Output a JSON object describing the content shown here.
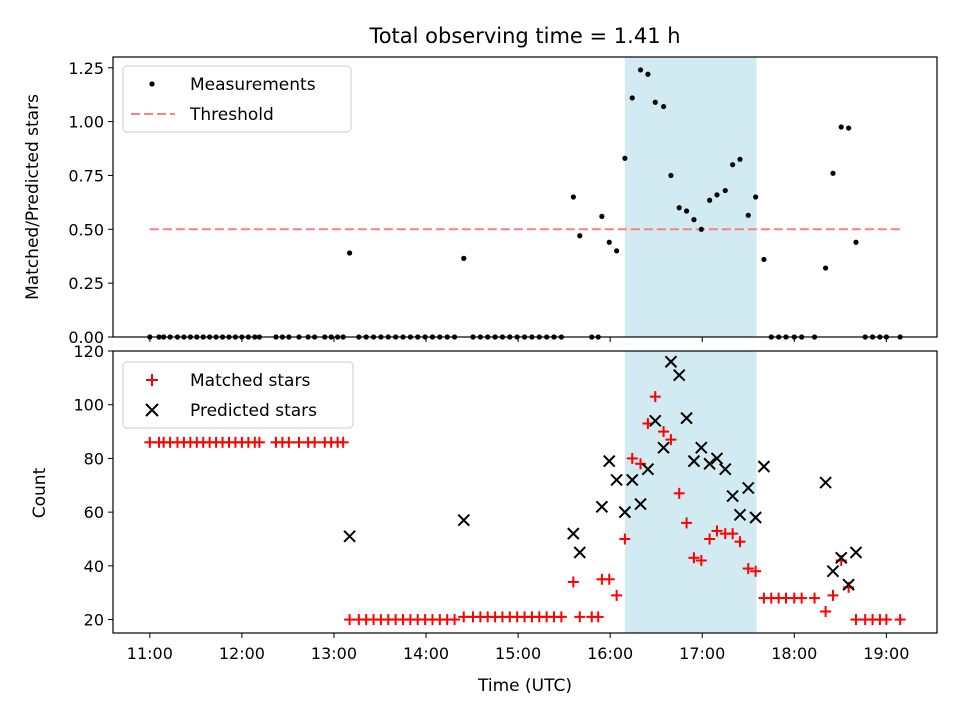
{
  "chart_data": [
    {
      "type": "scatter",
      "title": "Total observing time = 1.41 h",
      "ylabel": "Matched/Predicted stars",
      "xlim": [
        10.6,
        19.55
      ],
      "ylim": [
        0,
        1.3
      ],
      "yticks": [
        0,
        0.25,
        0.5,
        0.75,
        1.0,
        1.25
      ],
      "ytick_labels": [
        "0.00",
        "0.25",
        "0.50",
        "0.75",
        "1.00",
        "1.25"
      ],
      "shaded_interval": {
        "x_start": 16.16,
        "x_end": 17.59,
        "color": "#add8e6"
      },
      "threshold": {
        "name": "Threshold",
        "value": 0.5,
        "x_start": 11.0,
        "x_end": 19.15,
        "color": "#ff7f7f",
        "style": "dashed"
      },
      "legend": {
        "placement": "upper left",
        "entries": [
          "Measurements",
          "Threshold"
        ]
      },
      "series": [
        {
          "name": "Measurements",
          "marker": "dot",
          "color": "#000000",
          "points": [
            [
              11.0,
              0
            ],
            [
              11.1,
              0
            ],
            [
              11.15,
              0
            ],
            [
              11.22,
              0
            ],
            [
              11.3,
              0
            ],
            [
              11.37,
              0
            ],
            [
              11.44,
              0
            ],
            [
              11.51,
              0
            ],
            [
              11.58,
              0
            ],
            [
              11.65,
              0
            ],
            [
              11.72,
              0
            ],
            [
              11.79,
              0
            ],
            [
              11.86,
              0
            ],
            [
              11.93,
              0
            ],
            [
              12.0,
              0
            ],
            [
              12.07,
              0
            ],
            [
              12.14,
              0
            ],
            [
              12.19,
              0
            ],
            [
              12.37,
              0
            ],
            [
              12.44,
              0
            ],
            [
              12.51,
              0
            ],
            [
              12.62,
              0
            ],
            [
              12.72,
              0
            ],
            [
              12.79,
              0
            ],
            [
              12.9,
              0
            ],
            [
              12.97,
              0
            ],
            [
              13.04,
              0
            ],
            [
              13.1,
              0
            ],
            [
              13.17,
              0.39
            ],
            [
              13.27,
              0
            ],
            [
              13.35,
              0
            ],
            [
              13.43,
              0
            ],
            [
              13.51,
              0
            ],
            [
              13.59,
              0
            ],
            [
              13.67,
              0
            ],
            [
              13.75,
              0
            ],
            [
              13.83,
              0
            ],
            [
              13.91,
              0
            ],
            [
              13.99,
              0
            ],
            [
              14.07,
              0
            ],
            [
              14.15,
              0
            ],
            [
              14.23,
              0
            ],
            [
              14.31,
              0
            ],
            [
              14.41,
              0.365
            ],
            [
              14.51,
              0
            ],
            [
              14.59,
              0
            ],
            [
              14.67,
              0
            ],
            [
              14.75,
              0
            ],
            [
              14.83,
              0
            ],
            [
              14.91,
              0
            ],
            [
              14.99,
              0
            ],
            [
              15.07,
              0
            ],
            [
              15.15,
              0
            ],
            [
              15.23,
              0
            ],
            [
              15.31,
              0
            ],
            [
              15.39,
              0
            ],
            [
              15.47,
              0
            ],
            [
              15.6,
              0.65
            ],
            [
              15.67,
              0.47
            ],
            [
              15.8,
              0
            ],
            [
              15.87,
              0
            ],
            [
              15.91,
              0.56
            ],
            [
              15.99,
              0.44
            ],
            [
              16.07,
              0.4
            ],
            [
              16.16,
              0.83
            ],
            [
              16.24,
              1.11
            ],
            [
              16.33,
              1.24
            ],
            [
              16.41,
              1.22
            ],
            [
              16.49,
              1.09
            ],
            [
              16.58,
              1.07
            ],
            [
              16.66,
              0.75
            ],
            [
              16.75,
              0.6
            ],
            [
              16.83,
              0.585
            ],
            [
              16.91,
              0.545
            ],
            [
              16.99,
              0.5
            ],
            [
              17.08,
              0.635
            ],
            [
              17.16,
              0.66
            ],
            [
              17.25,
              0.68
            ],
            [
              17.33,
              0.8
            ],
            [
              17.41,
              0.825
            ],
            [
              17.5,
              0.565
            ],
            [
              17.58,
              0.65
            ],
            [
              17.67,
              0.36
            ],
            [
              17.75,
              0
            ],
            [
              17.83,
              0
            ],
            [
              17.91,
              0
            ],
            [
              18.0,
              0
            ],
            [
              18.08,
              0
            ],
            [
              18.22,
              0
            ],
            [
              18.34,
              0.32
            ],
            [
              18.42,
              0.76
            ],
            [
              18.51,
              0.975
            ],
            [
              18.59,
              0.97
            ],
            [
              18.67,
              0.44
            ],
            [
              18.77,
              0
            ],
            [
              18.85,
              0
            ],
            [
              18.93,
              0
            ],
            [
              19.0,
              0
            ],
            [
              19.15,
              0
            ]
          ]
        }
      ]
    },
    {
      "type": "scatter",
      "xlabel": "Time (UTC)",
      "ylabel": "Count",
      "xlim": [
        10.6,
        19.55
      ],
      "ylim": [
        15,
        120
      ],
      "xticks": [
        11,
        12,
        13,
        14,
        15,
        16,
        17,
        18,
        19
      ],
      "xtick_labels": [
        "11:00",
        "12:00",
        "13:00",
        "14:00",
        "15:00",
        "16:00",
        "17:00",
        "18:00",
        "19:00"
      ],
      "yticks": [
        20,
        40,
        60,
        80,
        100,
        120
      ],
      "ytick_labels": [
        "20",
        "40",
        "60",
        "80",
        "100",
        "120"
      ],
      "shaded_interval": {
        "x_start": 16.16,
        "x_end": 17.59,
        "color": "#add8e6"
      },
      "legend": {
        "placement": "upper left",
        "entries": [
          "Matched stars",
          "Predicted stars"
        ]
      },
      "series": [
        {
          "name": "Matched stars",
          "marker": "plus",
          "color": "#ff0000",
          "points": [
            [
              11.0,
              86
            ],
            [
              11.1,
              86
            ],
            [
              11.15,
              86
            ],
            [
              11.22,
              86
            ],
            [
              11.3,
              86
            ],
            [
              11.37,
              86
            ],
            [
              11.44,
              86
            ],
            [
              11.51,
              86
            ],
            [
              11.58,
              86
            ],
            [
              11.65,
              86
            ],
            [
              11.72,
              86
            ],
            [
              11.79,
              86
            ],
            [
              11.86,
              86
            ],
            [
              11.93,
              86
            ],
            [
              12.0,
              86
            ],
            [
              12.07,
              86
            ],
            [
              12.14,
              86
            ],
            [
              12.19,
              86
            ],
            [
              12.37,
              86
            ],
            [
              12.44,
              86
            ],
            [
              12.51,
              86
            ],
            [
              12.62,
              86
            ],
            [
              12.72,
              86
            ],
            [
              12.79,
              86
            ],
            [
              12.9,
              86
            ],
            [
              12.97,
              86
            ],
            [
              13.04,
              86
            ],
            [
              13.1,
              86
            ],
            [
              13.17,
              20
            ],
            [
              13.27,
              20
            ],
            [
              13.35,
              20
            ],
            [
              13.43,
              20
            ],
            [
              13.51,
              20
            ],
            [
              13.59,
              20
            ],
            [
              13.67,
              20
            ],
            [
              13.75,
              20
            ],
            [
              13.83,
              20
            ],
            [
              13.91,
              20
            ],
            [
              13.99,
              20
            ],
            [
              14.07,
              20
            ],
            [
              14.15,
              20
            ],
            [
              14.23,
              20
            ],
            [
              14.31,
              20
            ],
            [
              14.41,
              21
            ],
            [
              14.51,
              21
            ],
            [
              14.59,
              21
            ],
            [
              14.67,
              21
            ],
            [
              14.75,
              21
            ],
            [
              14.83,
              21
            ],
            [
              14.91,
              21
            ],
            [
              14.99,
              21
            ],
            [
              15.07,
              21
            ],
            [
              15.15,
              21
            ],
            [
              15.23,
              21
            ],
            [
              15.31,
              21
            ],
            [
              15.39,
              21
            ],
            [
              15.47,
              21
            ],
            [
              15.6,
              34
            ],
            [
              15.67,
              21
            ],
            [
              15.8,
              21
            ],
            [
              15.87,
              21
            ],
            [
              15.91,
              35
            ],
            [
              15.99,
              35
            ],
            [
              16.07,
              29
            ],
            [
              16.16,
              50
            ],
            [
              16.24,
              80
            ],
            [
              16.33,
              78
            ],
            [
              16.41,
              93
            ],
            [
              16.49,
              103
            ],
            [
              16.58,
              90
            ],
            [
              16.66,
              87
            ],
            [
              16.75,
              67
            ],
            [
              16.83,
              56
            ],
            [
              16.91,
              43
            ],
            [
              16.99,
              42
            ],
            [
              17.08,
              50
            ],
            [
              17.16,
              53
            ],
            [
              17.25,
              52
            ],
            [
              17.33,
              52
            ],
            [
              17.41,
              49
            ],
            [
              17.5,
              39
            ],
            [
              17.58,
              38
            ],
            [
              17.67,
              28
            ],
            [
              17.75,
              28
            ],
            [
              17.83,
              28
            ],
            [
              17.91,
              28
            ],
            [
              18.0,
              28
            ],
            [
              18.08,
              28
            ],
            [
              18.22,
              28
            ],
            [
              18.34,
              23
            ],
            [
              18.42,
              29
            ],
            [
              18.51,
              42
            ],
            [
              18.59,
              32
            ],
            [
              18.67,
              20
            ],
            [
              18.77,
              20
            ],
            [
              18.85,
              20
            ],
            [
              18.93,
              20
            ],
            [
              19.0,
              20
            ],
            [
              19.15,
              20
            ]
          ]
        },
        {
          "name": "Predicted stars",
          "marker": "x",
          "color": "#000000",
          "points": [
            [
              13.17,
              51
            ],
            [
              14.41,
              57
            ],
            [
              15.6,
              52
            ],
            [
              15.67,
              45
            ],
            [
              15.91,
              62
            ],
            [
              15.99,
              79
            ],
            [
              16.07,
              72
            ],
            [
              16.16,
              60
            ],
            [
              16.24,
              72
            ],
            [
              16.33,
              63
            ],
            [
              16.41,
              76
            ],
            [
              16.49,
              94
            ],
            [
              16.58,
              84
            ],
            [
              16.66,
              116
            ],
            [
              16.75,
              111
            ],
            [
              16.83,
              95
            ],
            [
              16.91,
              79
            ],
            [
              16.99,
              84
            ],
            [
              17.08,
              78
            ],
            [
              17.16,
              80
            ],
            [
              17.25,
              76
            ],
            [
              17.33,
              66
            ],
            [
              17.41,
              59
            ],
            [
              17.5,
              69
            ],
            [
              17.58,
              58
            ],
            [
              17.67,
              77
            ],
            [
              18.34,
              71
            ],
            [
              18.42,
              38
            ],
            [
              18.51,
              43
            ],
            [
              18.59,
              33
            ],
            [
              18.67,
              45
            ]
          ]
        }
      ]
    }
  ]
}
